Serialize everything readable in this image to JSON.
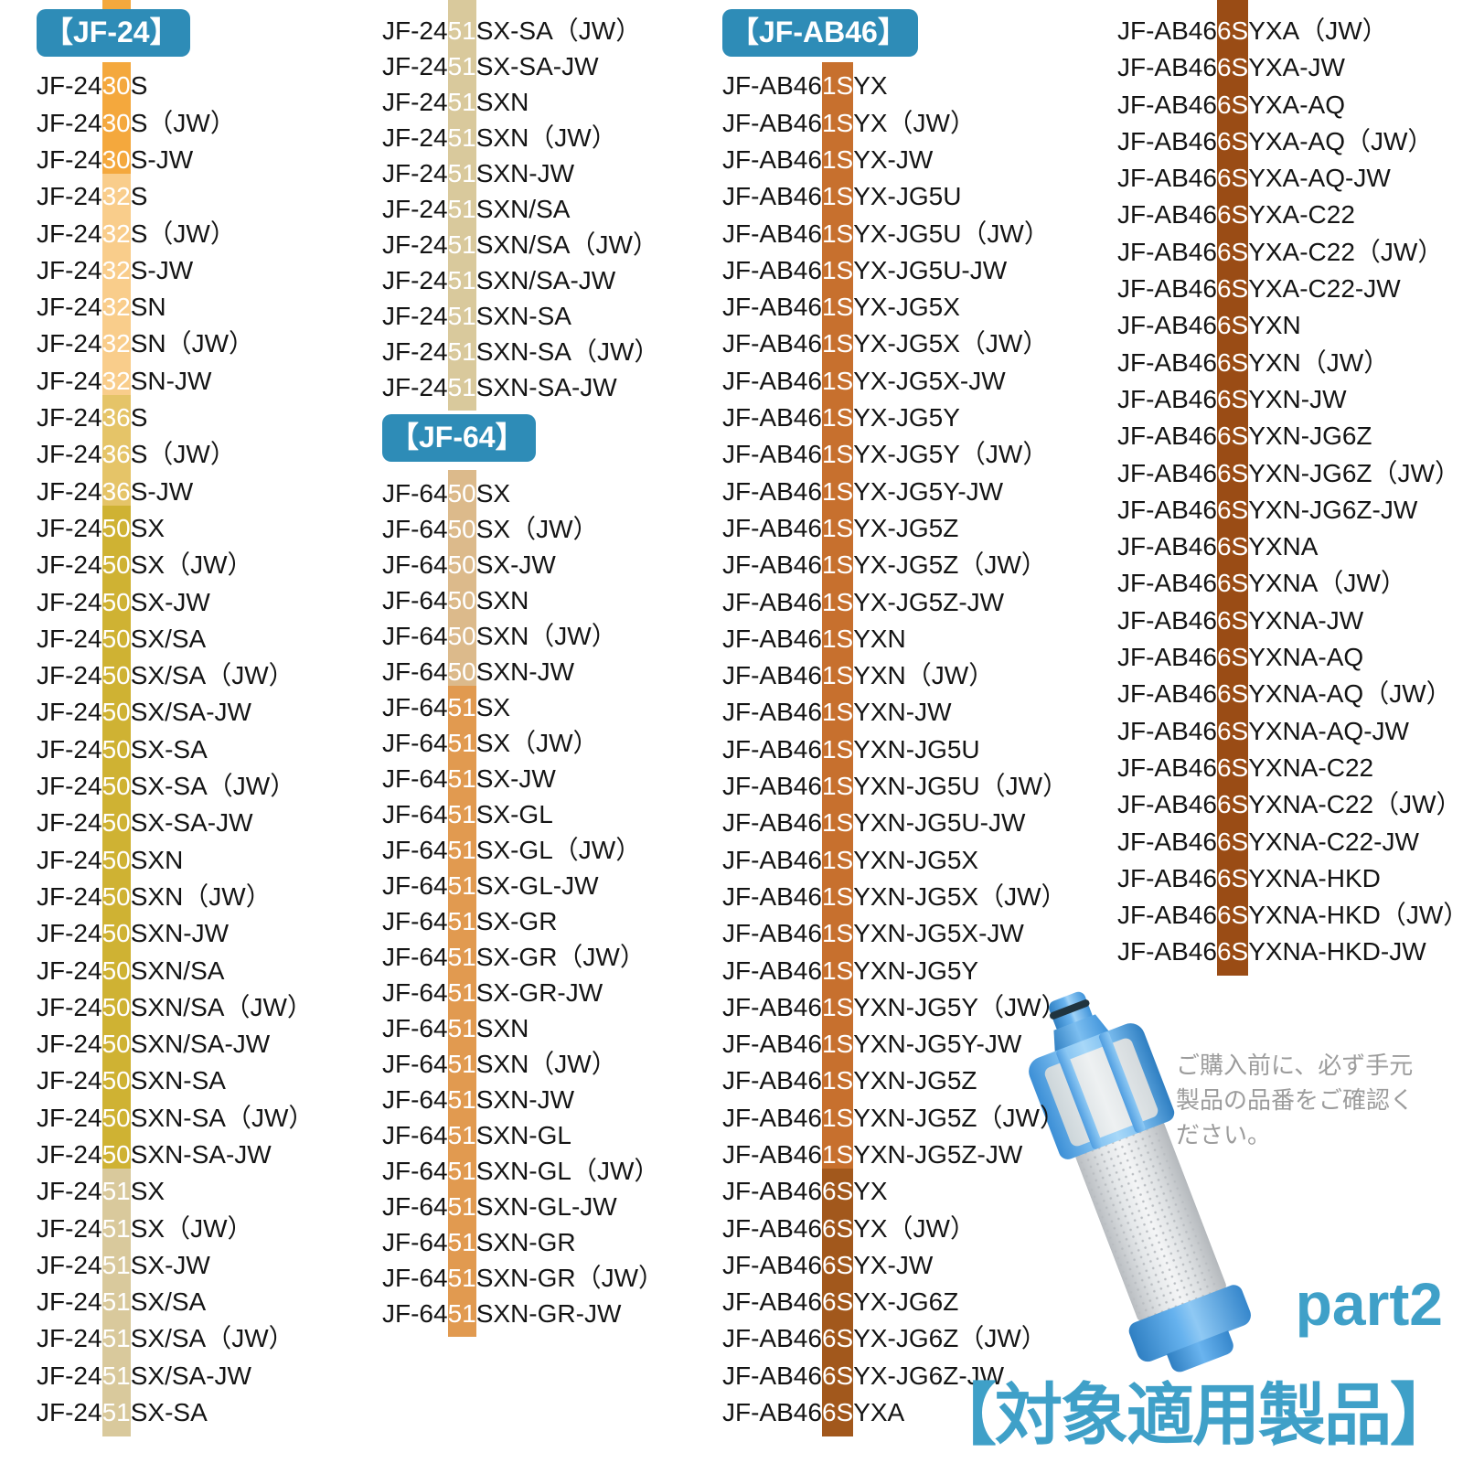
{
  "colors": {
    "badge_bg": "#2e8cb7",
    "badge_text": "#ffffff",
    "accent_blue": "#3fa0c8",
    "note_gray": "#9c9c9c",
    "text": "#141414"
  },
  "note": {
    "lines": [
      "ご購入前に、必ず手元",
      "製品の品番をご確認く",
      "ださい。"
    ]
  },
  "footer": {
    "part_label": "part2",
    "title": "【対象適用製品】"
  },
  "columns": [
    {
      "name": "jf24-column-1",
      "top_stub_color": "#f4a83d",
      "blocks": [
        {
          "type": "badge",
          "id": "jf24",
          "label": "【JF-24】"
        },
        {
          "type": "group",
          "code": "30",
          "color": "#f4a83d",
          "hl_start": 5,
          "hl_len": 2,
          "items": [
            "JF-2430S",
            "JF-2430S（JW）",
            "JF-2430S-JW"
          ]
        },
        {
          "type": "group",
          "code": "32",
          "color": "#f9cd8b",
          "hl_start": 5,
          "hl_len": 2,
          "items": [
            "JF-2432S",
            "JF-2432S（JW）",
            "JF-2432S-JW",
            "JF-2432SN",
            "JF-2432SN（JW）",
            "JF-2432SN-JW"
          ]
        },
        {
          "type": "group",
          "code": "36",
          "color": "#e5c468",
          "hl_start": 5,
          "hl_len": 2,
          "items": [
            "JF-2436S",
            "JF-2436S（JW）",
            "JF-2436S-JW"
          ]
        },
        {
          "type": "group",
          "code": "50",
          "color": "#cfb233",
          "hl_start": 5,
          "hl_len": 2,
          "items": [
            "JF-2450SX",
            "JF-2450SX（JW）",
            "JF-2450SX-JW",
            "JF-2450SX/SA",
            "JF-2450SX/SA（JW）",
            "JF-2450SX/SA-JW",
            "JF-2450SX-SA",
            "JF-2450SX-SA（JW）",
            "JF-2450SX-SA-JW",
            "JF-2450SXN",
            "JF-2450SXN（JW）",
            "JF-2450SXN-JW",
            "JF-2450SXN/SA",
            "JF-2450SXN/SA（JW）",
            "JF-2450SXN/SA-JW",
            "JF-2450SXN-SA",
            "JF-2450SXN-SA（JW）",
            "JF-2450SXN-SA-JW"
          ]
        },
        {
          "type": "group",
          "code": "51",
          "color": "#d9c99c",
          "hl_start": 5,
          "hl_len": 2,
          "items": [
            "JF-2451SX",
            "JF-2451SX（JW）",
            "JF-2451SX-JW",
            "JF-2451SX/SA",
            "JF-2451SX/SA（JW）",
            "JF-2451SX/SA-JW",
            "JF-2451SX-SA"
          ]
        }
      ]
    },
    {
      "name": "jf24-column-2",
      "blocks": [
        {
          "type": "group",
          "code": "51",
          "color": "#d9c99c",
          "hl_start": 5,
          "hl_len": 2,
          "extend_top": true,
          "items": [
            "JF-2451SX-SA（JW）",
            "JF-2451SX-SA-JW",
            "JF-2451SXN",
            "JF-2451SXN（JW）",
            "JF-2451SXN-JW",
            "JF-2451SXN/SA",
            "JF-2451SXN/SA（JW）",
            "JF-2451SXN/SA-JW",
            "JF-2451SXN-SA",
            "JF-2451SXN-SA（JW）",
            "JF-2451SXN-SA-JW"
          ]
        },
        {
          "type": "badge",
          "id": "jf64",
          "label": "【JF-64】"
        },
        {
          "type": "group",
          "code": "50",
          "color": "#dcba8b",
          "hl_start": 5,
          "hl_len": 2,
          "items": [
            "JF-6450SX",
            "JF-6450SX（JW）",
            "JF-6450SX-JW",
            "JF-6450SXN",
            "JF-6450SXN（JW）",
            "JF-6450SXN-JW"
          ]
        },
        {
          "type": "group",
          "code": "51",
          "color": "#e19a50",
          "hl_start": 5,
          "hl_len": 2,
          "items": [
            "JF-6451SX",
            "JF-6451SX（JW）",
            "JF-6451SX-JW",
            "JF-6451SX-GL",
            "JF-6451SX-GL（JW）",
            "JF-6451SX-GL-JW",
            "JF-6451SX-GR",
            "JF-6451SX-GR（JW）",
            "JF-6451SX-GR-JW",
            "JF-6451SXN",
            "JF-6451SXN（JW）",
            "JF-6451SXN-JW",
            "JF-6451SXN-GL",
            "JF-6451SXN-GL（JW）",
            "JF-6451SXN-GL-JW",
            "JF-6451SXN-GR",
            "JF-6451SXN-GR（JW）",
            "JF-6451SXN-GR-JW"
          ]
        }
      ]
    },
    {
      "name": "jfab46-column-1",
      "blocks": [
        {
          "type": "badge",
          "id": "jfab46",
          "label": "【JF-AB46】"
        },
        {
          "type": "group",
          "code": "1S",
          "color": "#c7702e",
          "hl_start": 7,
          "hl_len": 2,
          "items": [
            "JF-AB461SYX",
            "JF-AB461SYX（JW）",
            "JF-AB461SYX-JW",
            "JF-AB461SYX-JG5U",
            "JF-AB461SYX-JG5U（JW）",
            "JF-AB461SYX-JG5U-JW",
            "JF-AB461SYX-JG5X",
            "JF-AB461SYX-JG5X（JW）",
            "JF-AB461SYX-JG5X-JW",
            "JF-AB461SYX-JG5Y",
            "JF-AB461SYX-JG5Y（JW）",
            "JF-AB461SYX-JG5Y-JW",
            "JF-AB461SYX-JG5Z",
            "JF-AB461SYX-JG5Z（JW）",
            "JF-AB461SYX-JG5Z-JW",
            "JF-AB461SYXN",
            "JF-AB461SYXN（JW）",
            "JF-AB461SYXN-JW",
            "JF-AB461SYXN-JG5U",
            "JF-AB461SYXN-JG5U（JW）",
            "JF-AB461SYXN-JG5U-JW",
            "JF-AB461SYXN-JG5X",
            "JF-AB461SYXN-JG5X（JW）",
            "JF-AB461SYXN-JG5X-JW",
            "JF-AB461SYXN-JG5Y",
            "JF-AB461SYXN-JG5Y（JW）",
            "JF-AB461SYXN-JG5Y-JW",
            "JF-AB461SYXN-JG5Z",
            "JF-AB461SYXN-JG5Z（JW）",
            "JF-AB461SYXN-JG5Z-JW"
          ]
        },
        {
          "type": "group",
          "code": "6S",
          "color": "#a2581c",
          "hl_start": 7,
          "hl_len": 2,
          "items": [
            "JF-AB466SYX",
            "JF-AB466SYX（JW）",
            "JF-AB466SYX-JW",
            "JF-AB466SYX-JG6Z",
            "JF-AB466SYX-JG6Z（JW）",
            "JF-AB466SYX-JG6Z-JW",
            "JF-AB466SYXA"
          ]
        }
      ]
    },
    {
      "name": "jfab46-column-2",
      "blocks": [
        {
          "type": "group",
          "code": "6S",
          "color": "#9a4c15",
          "hl_start": 7,
          "hl_len": 2,
          "extend_top": true,
          "items": [
            "JF-AB466SYXA（JW）",
            "JF-AB466SYXA-JW",
            "JF-AB466SYXA-AQ",
            "JF-AB466SYXA-AQ（JW）",
            "JF-AB466SYXA-AQ-JW",
            "JF-AB466SYXA-C22",
            "JF-AB466SYXA-C22（JW）",
            "JF-AB466SYXA-C22-JW",
            "JF-AB466SYXN",
            "JF-AB466SYXN（JW）",
            "JF-AB466SYXN-JW",
            "JF-AB466SYXN-JG6Z",
            "JF-AB466SYXN-JG6Z（JW）",
            "JF-AB466SYXN-JG6Z-JW",
            "JF-AB466SYXNA",
            "JF-AB466SYXNA（JW）",
            "JF-AB466SYXNA-JW",
            "JF-AB466SYXNA-AQ",
            "JF-AB466SYXNA-AQ（JW）",
            "JF-AB466SYXNA-AQ-JW",
            "JF-AB466SYXNA-C22",
            "JF-AB466SYXNA-C22（JW）",
            "JF-AB466SYXNA-C22-JW",
            "JF-AB466SYXNA-HKD",
            "JF-AB466SYXNA-HKD（JW）",
            "JF-AB466SYXNA-HKD-JW"
          ]
        }
      ]
    }
  ]
}
